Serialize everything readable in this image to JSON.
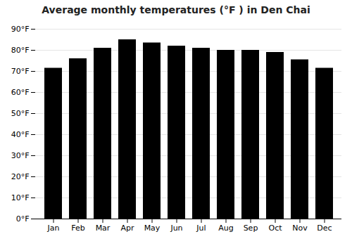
{
  "chart_data": {
    "type": "bar",
    "title": "Average monthly temperatures (°F ) in Den Chai",
    "categories": [
      "Jan",
      "Feb",
      "Mar",
      "Apr",
      "May",
      "Jun",
      "Jul",
      "Aug",
      "Sep",
      "Oct",
      "Nov",
      "Dec"
    ],
    "values": [
      71.5,
      76.0,
      81.0,
      85.0,
      83.5,
      82.0,
      81.0,
      80.0,
      80.0,
      79.0,
      75.5,
      71.5
    ],
    "ylim": [
      0,
      90
    ],
    "yticks": [
      {
        "value": 0,
        "label": "0°F"
      },
      {
        "value": 10,
        "label": "10°F"
      },
      {
        "value": 20,
        "label": "20°F"
      },
      {
        "value": 30,
        "label": "30°F"
      },
      {
        "value": 40,
        "label": "40°F"
      },
      {
        "value": 50,
        "label": "50°F"
      },
      {
        "value": 60,
        "label": "60°F"
      },
      {
        "value": 70,
        "label": "70°F"
      },
      {
        "value": 80,
        "label": "80°F"
      },
      {
        "value": 90,
        "label": "90°F"
      }
    ],
    "grid": true
  }
}
